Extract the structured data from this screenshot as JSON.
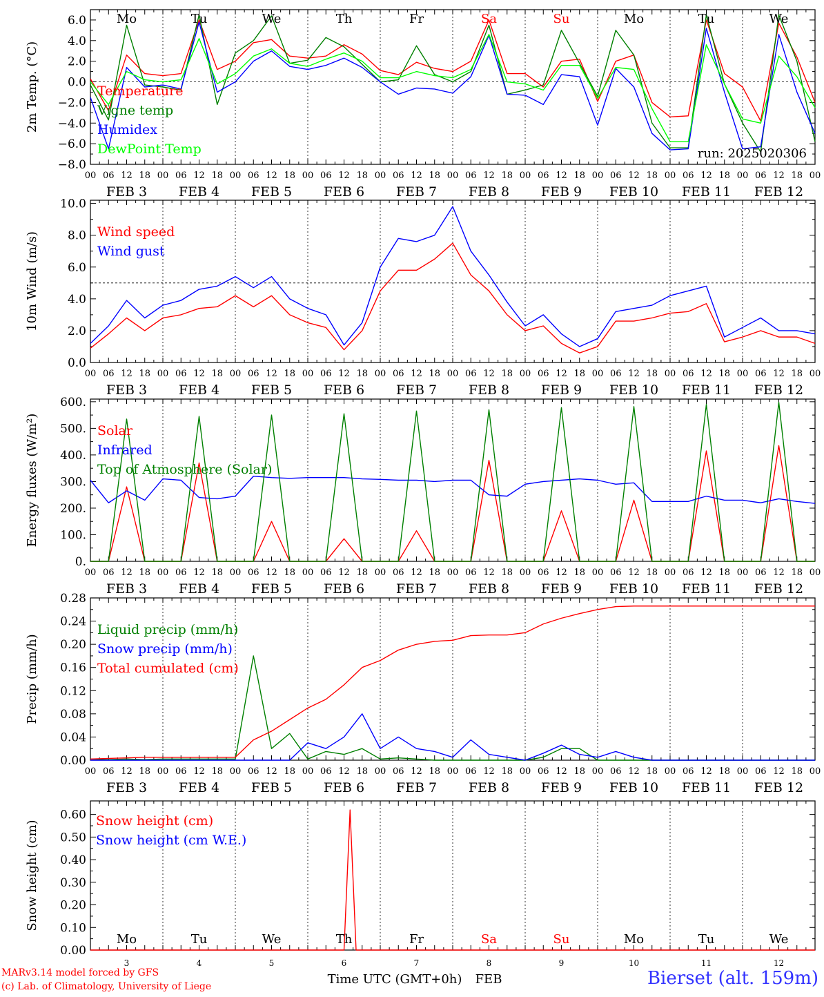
{
  "credits": {
    "model": "MARv3.14 model forced by GFS",
    "lab": "(c) Lab. of Climatology, University of Liege"
  },
  "station": "Bierset (alt. 159m)",
  "xaxis": {
    "hour_ticks": [
      "00",
      "06",
      "12",
      "18"
    ],
    "final_tick": "00",
    "days": [
      "FEB  3",
      "FEB  4",
      "FEB  5",
      "FEB  6",
      "FEB  7",
      "FEB  8",
      "FEB  9",
      "FEB 10",
      "FEB 11",
      "FEB 12"
    ],
    "weekdays": [
      "Mo",
      "Tu",
      "We",
      "Th",
      "Fr",
      "Sa",
      "Su",
      "Mo",
      "Tu",
      "We"
    ],
    "weekday_colors": [
      "#000000",
      "#000000",
      "#000000",
      "#000000",
      "#000000",
      "#ff0000",
      "#ff0000",
      "#000000",
      "#000000",
      "#000000"
    ],
    "day_numbers": [
      "3",
      "4",
      "5",
      "6",
      "7",
      "8",
      "9",
      "10",
      "11",
      "12"
    ],
    "bottom_label": "Time UTC (GMT+0h)",
    "month": "FEB"
  },
  "colors": {
    "red": "#ff0000",
    "green": "#008000",
    "blue": "#0000ff",
    "lightgreen": "#00ff00",
    "grid": "#000000"
  },
  "chart_data": [
    {
      "type": "line",
      "ylabel": "2m Temp. (°C)",
      "ylim": [
        -8,
        7
      ],
      "yticks": [
        6,
        4,
        2,
        0,
        -2,
        -4,
        -6,
        -8
      ],
      "ytick_labels": [
        "6.0",
        "4.0",
        "2.0",
        "0.0",
        "−2.0",
        "−4.0",
        "−6.0",
        "−8.0"
      ],
      "ref_line": 0,
      "annotation": "run: 2025020306",
      "x_hours": [
        0,
        6,
        12,
        18,
        24,
        30,
        36,
        42,
        48,
        54,
        60,
        66,
        72,
        78,
        84,
        90,
        96,
        102,
        108,
        114,
        120,
        126,
        132,
        138,
        144,
        150,
        156,
        162,
        168,
        174,
        180,
        186,
        192,
        198,
        204,
        210,
        216,
        222,
        228,
        234,
        240
      ],
      "series": [
        {
          "name": "Temperature",
          "color": "red",
          "values": [
            0.3,
            -2.8,
            2.6,
            0.8,
            0.6,
            0.8,
            6.0,
            1.2,
            2.0,
            3.8,
            4.1,
            2.5,
            2.3,
            2.5,
            3.6,
            2.7,
            1.1,
            0.7,
            1.9,
            1.3,
            1.0,
            2.0,
            6.0,
            0.8,
            0.8,
            -0.5,
            2.0,
            2.2,
            -1.9,
            2.0,
            2.6,
            -2.0,
            -3.4,
            -3.3,
            6.0,
            0.8,
            -0.5,
            -3.8,
            5.7,
            2.4,
            -2.0
          ]
        },
        {
          "name": "Vigne temp",
          "color": "green",
          "values": [
            -0.3,
            -3.7,
            5.5,
            -0.3,
            -0.5,
            -0.8,
            6.5,
            -2.2,
            2.8,
            4.0,
            6.4,
            1.8,
            2.1,
            4.3,
            3.4,
            1.7,
            0.0,
            0.2,
            3.5,
            0.7,
            0.0,
            1.0,
            5.5,
            -1.2,
            -0.8,
            -0.3,
            5.0,
            1.8,
            -1.4,
            5.0,
            2.6,
            -4.0,
            -6.4,
            -6.4,
            6.5,
            -0.2,
            -4.0,
            -6.8,
            6.5,
            2.0,
            -5.8
          ]
        },
        {
          "name": "Humidex",
          "color": "blue",
          "values": [
            -1.5,
            -6.5,
            1.4,
            -0.5,
            -0.3,
            -0.7,
            5.8,
            -1.0,
            0.0,
            2.0,
            3.0,
            1.5,
            1.2,
            1.6,
            2.3,
            1.4,
            0.0,
            -1.2,
            -0.6,
            -0.7,
            -1.1,
            0.5,
            4.5,
            -1.2,
            -1.3,
            -2.2,
            0.7,
            0.5,
            -4.2,
            1.3,
            -0.5,
            -5.0,
            -6.6,
            -6.5,
            5.2,
            -1.0,
            -6.5,
            -6.3,
            4.6,
            -1.0,
            -5.0
          ]
        },
        {
          "name": "DewPoint Temp",
          "color": "lightgreen",
          "values": [
            0.0,
            -2.2,
            1.0,
            0.2,
            0.0,
            0.2,
            4.2,
            -0.2,
            0.8,
            2.5,
            3.2,
            1.8,
            1.5,
            2.2,
            2.8,
            2.0,
            0.4,
            0.4,
            1.0,
            0.6,
            0.4,
            1.2,
            4.6,
            0.0,
            -0.2,
            -0.8,
            1.6,
            1.6,
            -1.6,
            1.4,
            1.2,
            -2.6,
            -5.8,
            -5.8,
            3.6,
            -0.2,
            -3.6,
            -4.0,
            2.5,
            0.5,
            -2.5
          ]
        }
      ]
    },
    {
      "type": "line",
      "ylabel": "10m Wind (m/s)",
      "ylim": [
        0,
        10.2
      ],
      "yticks": [
        0,
        2,
        4,
        6,
        8,
        10
      ],
      "ytick_labels": [
        "0.0",
        "2.0",
        "4.0",
        "6.0",
        "8.0",
        "10.0"
      ],
      "ref_line": 5,
      "x_hours": [
        0,
        6,
        12,
        18,
        24,
        30,
        36,
        42,
        48,
        54,
        60,
        66,
        72,
        78,
        84,
        90,
        96,
        102,
        108,
        114,
        120,
        126,
        132,
        138,
        144,
        150,
        156,
        162,
        168,
        174,
        180,
        186,
        192,
        198,
        204,
        210,
        216,
        222,
        228,
        234,
        240
      ],
      "series": [
        {
          "name": "Wind speed",
          "color": "red",
          "values": [
            0.9,
            1.8,
            2.8,
            2.0,
            2.8,
            3.0,
            3.4,
            3.5,
            4.2,
            3.5,
            4.2,
            3.0,
            2.5,
            2.2,
            0.8,
            2.0,
            4.5,
            5.8,
            5.8,
            6.5,
            7.5,
            5.5,
            4.5,
            3.0,
            2.0,
            2.3,
            1.2,
            0.6,
            1.0,
            2.6,
            2.6,
            2.8,
            3.1,
            3.2,
            3.7,
            1.3,
            1.6,
            2.0,
            1.6,
            1.6,
            1.2
          ]
        },
        {
          "name": "Wind gust",
          "color": "blue",
          "values": [
            1.2,
            2.3,
            3.9,
            2.8,
            3.6,
            3.9,
            4.6,
            4.8,
            5.4,
            4.7,
            5.4,
            4.0,
            3.4,
            3.0,
            1.1,
            2.5,
            6.0,
            7.8,
            7.6,
            8.0,
            9.8,
            7.0,
            5.5,
            3.8,
            2.3,
            3.0,
            1.8,
            1.0,
            1.5,
            3.2,
            3.4,
            3.6,
            4.2,
            4.5,
            4.8,
            1.6,
            2.2,
            2.8,
            2.0,
            2.0,
            1.8
          ]
        }
      ]
    },
    {
      "type": "line",
      "ylabel": "Energy fluxes (W/m²)",
      "ylim": [
        0,
        610
      ],
      "yticks": [
        0,
        100,
        200,
        300,
        400,
        500,
        600
      ],
      "ytick_labels": [
        "0.",
        "100.",
        "200.",
        "300.",
        "400.",
        "500.",
        "600."
      ],
      "x_hours": [
        0,
        6,
        12,
        18,
        24,
        30,
        36,
        42,
        48,
        54,
        60,
        66,
        72,
        78,
        84,
        90,
        96,
        102,
        108,
        114,
        120,
        126,
        132,
        138,
        144,
        150,
        156,
        162,
        168,
        174,
        180,
        186,
        192,
        198,
        204,
        210,
        216,
        222,
        228,
        234,
        240
      ],
      "series": [
        {
          "name": "Solar",
          "color": "red",
          "values": [
            0,
            0,
            280,
            0,
            0,
            0,
            370,
            0,
            0,
            0,
            150,
            0,
            0,
            0,
            85,
            0,
            0,
            0,
            115,
            0,
            0,
            0,
            380,
            0,
            0,
            0,
            190,
            0,
            0,
            0,
            230,
            0,
            0,
            0,
            415,
            0,
            0,
            0,
            435,
            0,
            0
          ]
        },
        {
          "name": "Infrared",
          "color": "blue",
          "values": [
            305,
            220,
            265,
            230,
            310,
            305,
            240,
            235,
            245,
            320,
            315,
            312,
            315,
            315,
            315,
            310,
            308,
            305,
            305,
            300,
            305,
            305,
            250,
            245,
            290,
            300,
            305,
            310,
            305,
            290,
            295,
            225,
            225,
            225,
            245,
            230,
            230,
            220,
            235,
            225,
            218
          ]
        },
        {
          "name": "Top of Atmosphere (Solar)",
          "color": "green",
          "values": [
            0,
            0,
            535,
            0,
            0,
            0,
            545,
            0,
            0,
            0,
            550,
            0,
            0,
            0,
            555,
            0,
            0,
            0,
            565,
            0,
            0,
            0,
            570,
            0,
            0,
            0,
            578,
            0,
            0,
            0,
            582,
            0,
            0,
            0,
            590,
            0,
            0,
            0,
            598,
            0,
            0
          ]
        }
      ]
    },
    {
      "type": "line",
      "ylabel": "Precip (mm/h)",
      "ylim": [
        0,
        0.28
      ],
      "yticks": [
        0,
        0.04,
        0.08,
        0.12,
        0.16,
        0.2,
        0.24,
        0.28
      ],
      "ytick_labels": [
        "0.00",
        "0.04",
        "0.08",
        "0.12",
        "0.16",
        "0.20",
        "0.24",
        "0.28"
      ],
      "x_hours": [
        0,
        6,
        12,
        18,
        24,
        30,
        36,
        42,
        48,
        54,
        60,
        66,
        72,
        78,
        84,
        90,
        96,
        102,
        108,
        114,
        120,
        126,
        132,
        138,
        144,
        150,
        156,
        162,
        168,
        174,
        180,
        186,
        192,
        198,
        204,
        210,
        216,
        222,
        228,
        234,
        240
      ],
      "series": [
        {
          "name": "Liquid precip (mm/h)",
          "color": "green",
          "values": [
            0.002,
            0.001,
            0.002,
            0.001,
            0.002,
            0.002,
            0.002,
            0.002,
            0.002,
            0.18,
            0.02,
            0.046,
            0.002,
            0.015,
            0.01,
            0.02,
            0.002,
            0.004,
            0.002,
            0.0,
            0.0,
            0.0,
            0.0,
            0.0,
            0.0,
            0.005,
            0.02,
            0.02,
            0.0,
            0.0,
            0.0,
            0.0,
            0.0,
            0.0,
            0.0,
            0.0,
            0.0,
            0.0,
            0.0,
            0.0,
            0.0
          ]
        },
        {
          "name": "Snow precip (mm/h)",
          "color": "blue",
          "values": [
            0.0,
            0.0,
            0.0,
            0.0,
            0.0,
            0.0,
            0.0,
            0.0,
            0.0,
            0.0,
            0.0,
            0.0,
            0.03,
            0.02,
            0.04,
            0.08,
            0.02,
            0.04,
            0.02,
            0.015,
            0.005,
            0.035,
            0.01,
            0.005,
            0.0,
            0.012,
            0.026,
            0.01,
            0.005,
            0.015,
            0.005,
            0.0,
            0.0,
            0.0,
            0.0,
            0.0,
            0.0,
            0.0,
            0.0,
            0.0,
            0.0
          ]
        },
        {
          "name": "Total cumulated (cm)",
          "color": "red",
          "values": [
            0.002,
            0.003,
            0.004,
            0.005,
            0.005,
            0.005,
            0.005,
            0.005,
            0.005,
            0.035,
            0.05,
            0.07,
            0.09,
            0.105,
            0.13,
            0.16,
            0.172,
            0.19,
            0.2,
            0.205,
            0.207,
            0.215,
            0.216,
            0.216,
            0.22,
            0.235,
            0.245,
            0.253,
            0.26,
            0.265,
            0.266,
            0.266,
            0.266,
            0.266,
            0.266,
            0.266,
            0.266,
            0.266,
            0.266,
            0.266,
            0.266
          ]
        }
      ]
    },
    {
      "type": "line",
      "ylabel": "Snow height (cm)",
      "ylim": [
        0,
        0.66
      ],
      "yticks": [
        0,
        0.1,
        0.2,
        0.3,
        0.4,
        0.5,
        0.6
      ],
      "ytick_labels": [
        "0.00",
        "0.10",
        "0.20",
        "0.30",
        "0.40",
        "0.50",
        "0.60"
      ],
      "x_hours": [
        0,
        6,
        12,
        18,
        24,
        30,
        36,
        42,
        48,
        54,
        60,
        66,
        72,
        78,
        84,
        86,
        88,
        90,
        96,
        102,
        108,
        114,
        120,
        126,
        132,
        138,
        144,
        150,
        156,
        162,
        168,
        174,
        180,
        186,
        192,
        198,
        204,
        210,
        216,
        222,
        228,
        234,
        240
      ],
      "series": [
        {
          "name": "Snow height (cm)",
          "color": "red",
          "values": [
            0,
            0,
            0,
            0,
            0,
            0,
            0,
            0,
            0,
            0,
            0,
            0,
            0,
            0,
            0,
            0.62,
            0,
            0,
            0,
            0,
            0,
            0,
            0,
            0,
            0,
            0,
            0,
            0,
            0,
            0,
            0,
            0,
            0,
            0,
            0,
            0,
            0,
            0,
            0,
            0,
            0,
            0,
            0
          ]
        },
        {
          "name": "Snow height (cm W.E.)",
          "color": "blue",
          "values": []
        }
      ]
    }
  ]
}
